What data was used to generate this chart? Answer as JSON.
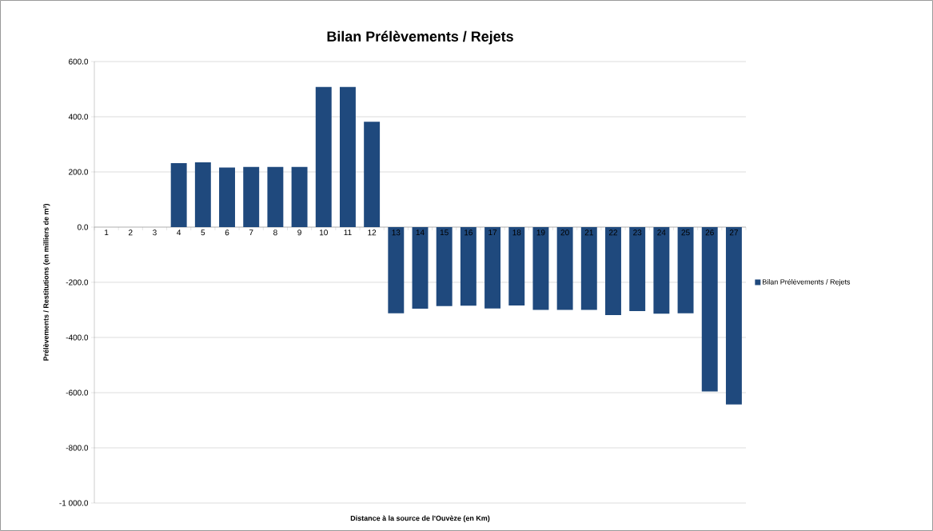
{
  "chart_data": {
    "type": "bar",
    "title": "Bilan Prélèvements / Rejets",
    "xlabel": "Distance à la source de l'Ouvèze (en Km)",
    "ylabel": "Prélèvements / Restitutions (en milliers de m³)",
    "categories": [
      "1",
      "2",
      "3",
      "4",
      "5",
      "6",
      "7",
      "8",
      "9",
      "10",
      "11",
      "12",
      "13",
      "14",
      "15",
      "16",
      "17",
      "18",
      "19",
      "20",
      "21",
      "22",
      "23",
      "24",
      "25",
      "26",
      "27"
    ],
    "series": [
      {
        "name": "Bilan Prélèvements / Rejets",
        "color": "#1f497d",
        "values": [
          0,
          0,
          0,
          232,
          235,
          216,
          218,
          218,
          218,
          508,
          508,
          382,
          -312,
          -296,
          -286,
          -285,
          -295,
          -284,
          -300,
          -300,
          -300,
          -319,
          -304,
          -314,
          -312,
          -596,
          -643
        ]
      }
    ],
    "ylim": [
      -1000,
      600
    ],
    "yticks": [
      {
        "value": -1000,
        "label": "-1 000.0"
      },
      {
        "value": -800,
        "label": "-800.0"
      },
      {
        "value": -600,
        "label": "-600.0"
      },
      {
        "value": -400,
        "label": "-400.0"
      },
      {
        "value": -200,
        "label": "-200.0"
      },
      {
        "value": 0,
        "label": "0.0"
      },
      {
        "value": 200,
        "label": "200.0"
      },
      {
        "value": 400,
        "label": "400.0"
      },
      {
        "value": 600,
        "label": "600.0"
      }
    ],
    "grid": "y",
    "legend": "right"
  }
}
